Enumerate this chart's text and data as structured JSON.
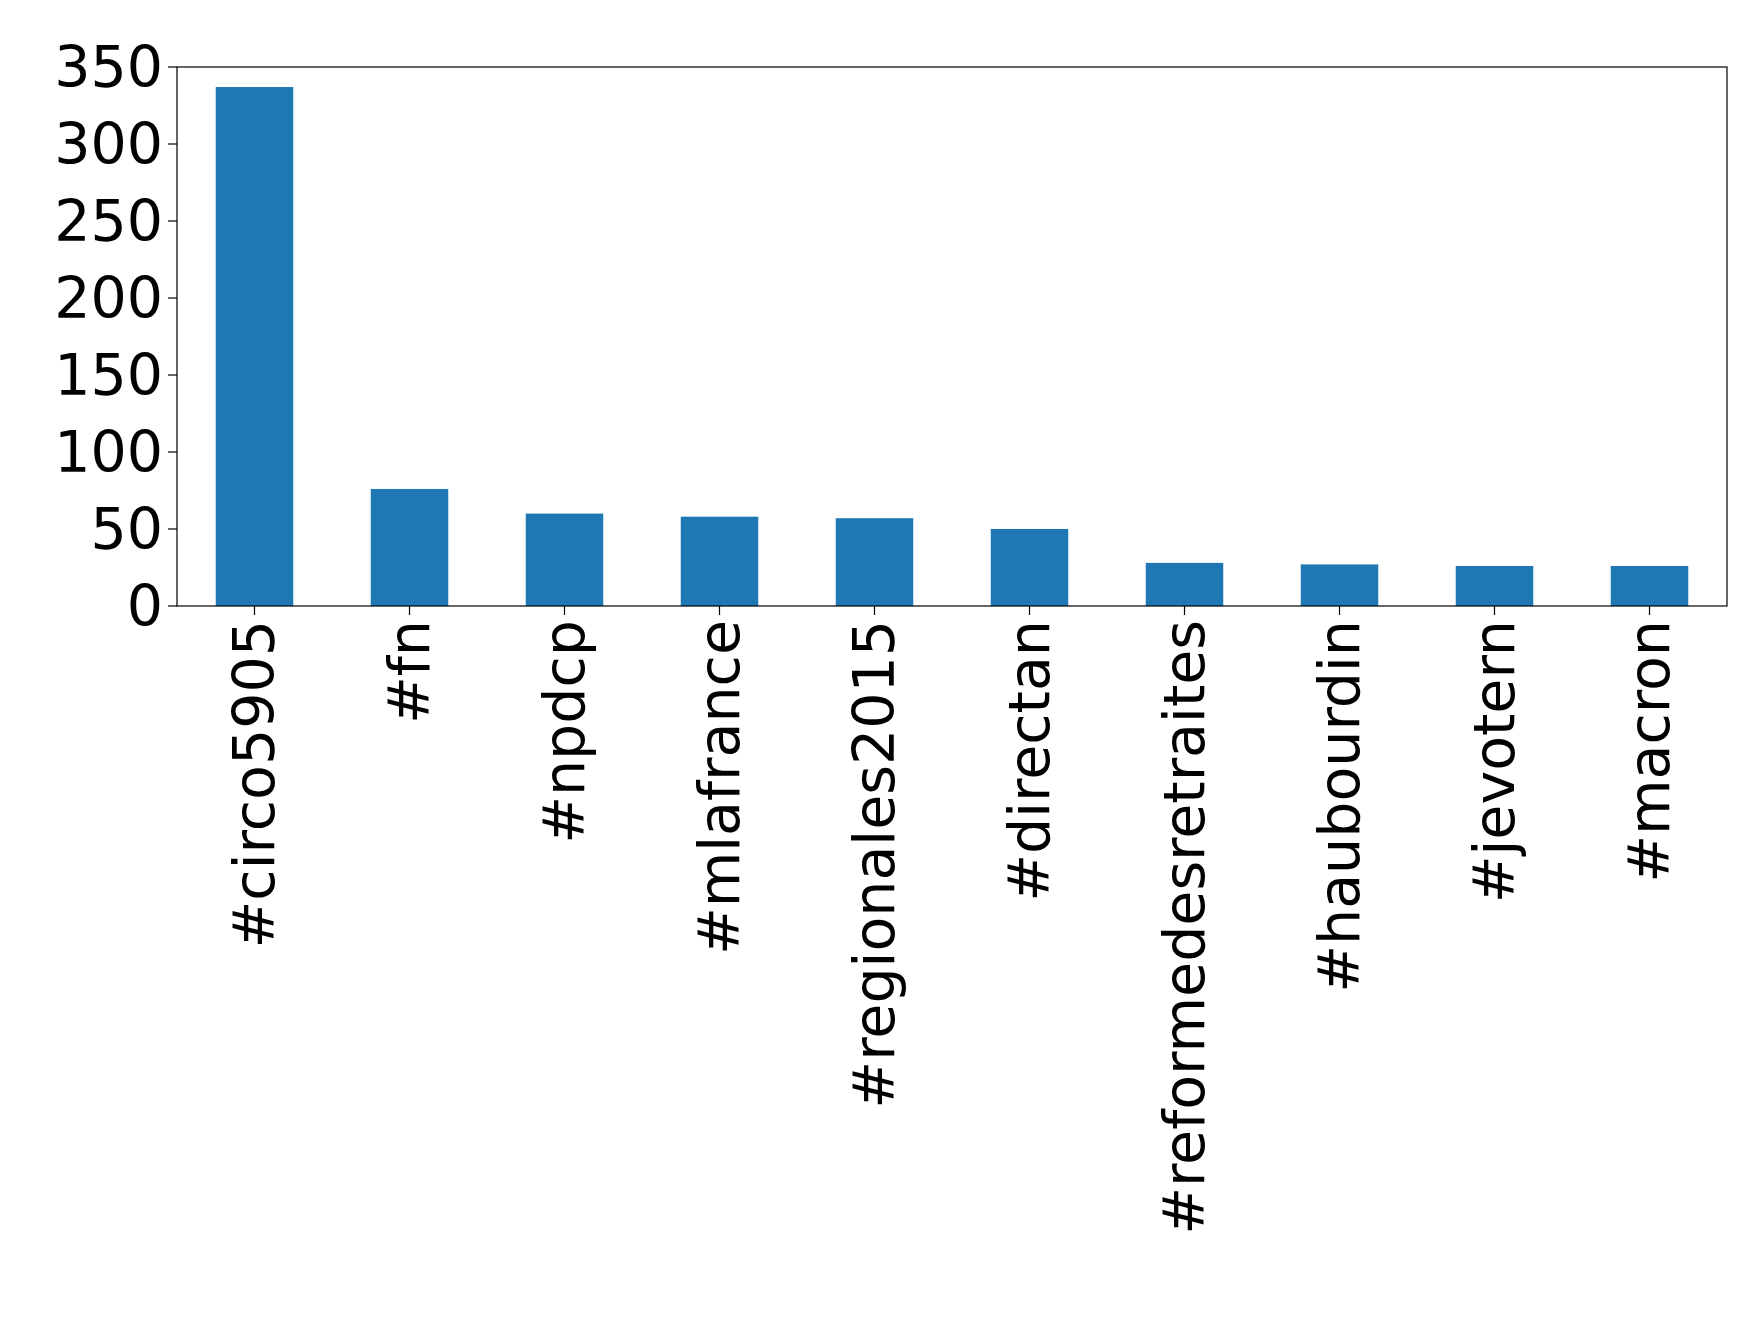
{
  "chart_data": {
    "type": "bar",
    "categories": [
      "#circo5905",
      "#fn",
      "#npdcp",
      "#mlafrance",
      "#regionales2015",
      "#directan",
      "#reformedesretraites",
      "#haubourdin",
      "#jevotern",
      "#macron"
    ],
    "values": [
      337,
      76,
      60,
      58,
      57,
      50,
      28,
      27,
      26,
      26
    ],
    "color": "#1f77b4",
    "ylim": [
      0,
      350
    ],
    "yticks": [
      0,
      50,
      100,
      150,
      200,
      250,
      300,
      350
    ],
    "grid": false
  }
}
